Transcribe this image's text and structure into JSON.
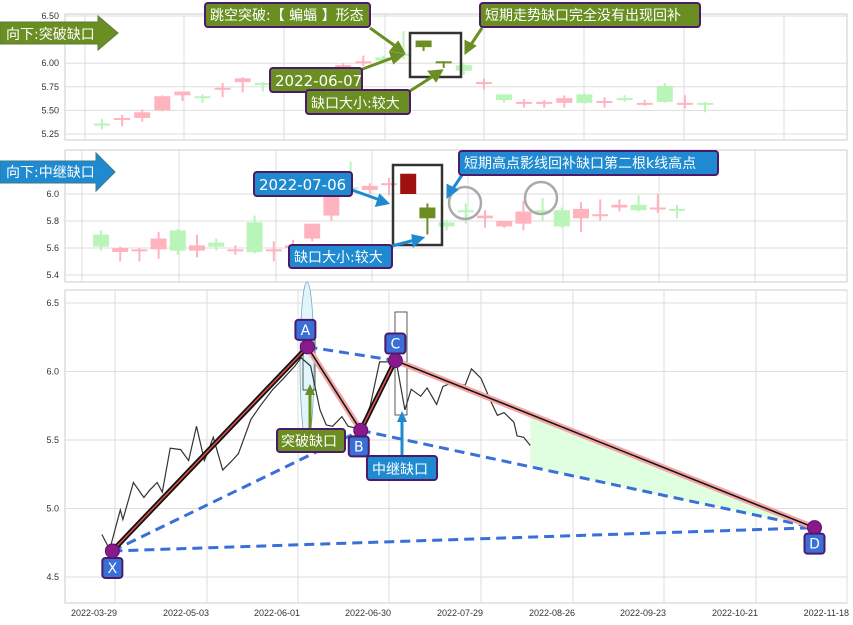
{
  "colors": {
    "up": "#ffb3bf",
    "down": "#b9f5b9",
    "highlight_green": "#6b8e23",
    "highlight_red": "#a01010",
    "olive_label": "#6b8e23",
    "blue_label": "#1f8ad0",
    "label_border": "#4b1a6b",
    "pattern_point": "#8a1a8a",
    "dashed": "#3a6fd8",
    "leg_red": "#e05050",
    "fill_zone": "#ddffdd"
  },
  "chart_data": [
    {
      "type": "candlestick",
      "panel": "breakaway-gap",
      "tag_label": "向下:突破缺口",
      "ylim": [
        5.15,
        6.5
      ],
      "yticks": [
        "6.50",
        "6.00",
        "5.75",
        "5.50",
        "5.25"
      ],
      "ytick_values": [
        6.5,
        6.0,
        5.75,
        5.5,
        5.25
      ],
      "grid": true,
      "annotations": {
        "pattern": "跳空突破:【 蝙蝠 】形态",
        "date": "2022-06-07",
        "gap_size": "缺口大小:较大",
        "note": "短期走势缺口完全没有出现回补"
      },
      "candles": [
        [
          5.36,
          5.41,
          5.3,
          5.35
        ],
        [
          5.41,
          5.45,
          5.33,
          5.42
        ],
        [
          5.42,
          5.51,
          5.38,
          5.48
        ],
        [
          5.5,
          5.66,
          5.49,
          5.65
        ],
        [
          5.66,
          5.7,
          5.6,
          5.7
        ],
        [
          5.65,
          5.67,
          5.58,
          5.64
        ],
        [
          5.72,
          5.79,
          5.64,
          5.74
        ],
        [
          5.8,
          5.85,
          5.69,
          5.84
        ],
        [
          5.79,
          5.8,
          5.7,
          5.78
        ],
        [
          5.84,
          5.88,
          5.78,
          5.85
        ],
        [
          5.88,
          5.93,
          5.84,
          5.9
        ],
        [
          5.92,
          5.96,
          5.88,
          5.94
        ],
        [
          5.96,
          6.0,
          5.93,
          5.98
        ],
        [
          6.0,
          6.08,
          5.97,
          6.02
        ],
        [
          6.06,
          6.08,
          6.02,
          6.03
        ],
        [
          6.1,
          6.34,
          6.04,
          6.08
        ],
        [
          6.24,
          6.24,
          6.13,
          6.17
        ],
        [
          6.02,
          6.02,
          5.95,
          6.0
        ],
        [
          5.98,
          6.0,
          5.88,
          5.92
        ],
        [
          5.78,
          5.84,
          5.72,
          5.8
        ],
        [
          5.67,
          5.67,
          5.58,
          5.61
        ],
        [
          5.58,
          5.62,
          5.53,
          5.59
        ],
        [
          5.58,
          5.61,
          5.53,
          5.59
        ],
        [
          5.58,
          5.66,
          5.53,
          5.63
        ],
        [
          5.67,
          5.68,
          5.57,
          5.58
        ],
        [
          5.58,
          5.64,
          5.53,
          5.6
        ],
        [
          5.63,
          5.66,
          5.59,
          5.62
        ],
        [
          5.57,
          5.61,
          5.55,
          5.58
        ],
        [
          5.76,
          5.79,
          5.58,
          5.59
        ],
        [
          5.57,
          5.66,
          5.52,
          5.58
        ],
        [
          5.58,
          5.59,
          5.48,
          5.57
        ]
      ],
      "highlighted": [
        16,
        17
      ]
    },
    {
      "type": "candlestick",
      "panel": "runaway-gap",
      "tag_label": "向下:中继缺口",
      "ylim": [
        5.38,
        6.3
      ],
      "yticks": [
        "6.0",
        "5.8",
        "5.6",
        "5.4"
      ],
      "ytick_values": [
        6.0,
        5.8,
        5.6,
        5.4
      ],
      "grid": true,
      "annotations": {
        "date": "2022-07-06",
        "gap_size": "缺口大小:较大",
        "note": "短期高点影线回补缺口第二根k线高点"
      },
      "candles": [
        [
          5.7,
          5.73,
          5.58,
          5.61
        ],
        [
          5.57,
          5.61,
          5.5,
          5.6
        ],
        [
          5.58,
          5.6,
          5.5,
          5.59
        ],
        [
          5.59,
          5.72,
          5.52,
          5.67
        ],
        [
          5.73,
          5.74,
          5.55,
          5.58
        ],
        [
          5.58,
          5.7,
          5.53,
          5.62
        ],
        [
          5.64,
          5.67,
          5.58,
          5.61
        ],
        [
          5.58,
          5.62,
          5.55,
          5.59
        ],
        [
          5.79,
          5.84,
          5.56,
          5.57
        ],
        [
          5.58,
          5.65,
          5.5,
          5.59
        ],
        [
          5.6,
          5.66,
          5.55,
          5.62
        ],
        [
          5.67,
          5.78,
          5.65,
          5.78
        ],
        [
          5.84,
          6.05,
          5.8,
          6.0
        ],
        [
          6.05,
          6.24,
          6.02,
          6.04
        ],
        [
          6.03,
          6.08,
          6.0,
          6.06
        ],
        [
          6.07,
          6.12,
          5.99,
          6.08
        ],
        [
          6.0,
          6.15,
          6.0,
          6.15
        ],
        [
          5.9,
          5.93,
          5.7,
          5.82
        ],
        [
          5.79,
          5.81,
          5.73,
          5.76
        ],
        [
          5.88,
          5.93,
          5.78,
          5.87
        ],
        [
          5.82,
          5.88,
          5.75,
          5.84
        ],
        [
          5.76,
          5.8,
          5.75,
          5.8
        ],
        [
          5.78,
          5.95,
          5.73,
          5.87
        ],
        [
          5.88,
          5.97,
          5.8,
          5.87
        ],
        [
          5.88,
          5.9,
          5.75,
          5.76
        ],
        [
          5.82,
          5.94,
          5.72,
          5.89
        ],
        [
          5.84,
          5.96,
          5.8,
          5.85
        ],
        [
          5.9,
          5.96,
          5.87,
          5.92
        ],
        [
          5.92,
          5.99,
          5.87,
          5.88
        ],
        [
          5.89,
          6.0,
          5.86,
          5.9
        ],
        [
          5.89,
          5.92,
          5.82,
          5.88
        ]
      ],
      "highlighted": [
        16,
        17
      ],
      "circled": [
        19,
        23
      ]
    },
    {
      "type": "line",
      "panel": "xabcd-pattern",
      "ylim": [
        4.35,
        6.65
      ],
      "yticks": [
        "6.5",
        "6.0",
        "5.5",
        "5.0",
        "4.5"
      ],
      "ytick_values": [
        6.5,
        6.0,
        5.5,
        5.0,
        4.5
      ],
      "xticks": [
        "2022-03-29",
        "2022-05-03",
        "2022-06-01",
        "2022-06-30",
        "2022-07-29",
        "2022-08-26",
        "2022-09-23",
        "2022-10-21",
        "2022-11-18"
      ],
      "grid": true,
      "price": [
        [
          "2022-03-24",
          4.81
        ],
        [
          "2022-03-27",
          4.7
        ],
        [
          "2022-03-31",
          4.99
        ],
        [
          "2022-04-01",
          4.92
        ],
        [
          "2022-04-05",
          5.19
        ],
        [
          "2022-04-09",
          5.08
        ],
        [
          "2022-04-11",
          5.13
        ],
        [
          "2022-04-14",
          5.19
        ],
        [
          "2022-04-16",
          5.12
        ],
        [
          "2022-04-19",
          5.44
        ],
        [
          "2022-04-23",
          5.43
        ],
        [
          "2022-04-26",
          5.35
        ],
        [
          "2022-04-29",
          5.6
        ],
        [
          "2022-05-02",
          5.35
        ],
        [
          "2022-05-05",
          5.52
        ],
        [
          "2022-05-08",
          5.28
        ],
        [
          "2022-05-11",
          5.35
        ],
        [
          "2022-05-13",
          5.4
        ],
        [
          "2022-05-17",
          5.65
        ],
        [
          "2022-05-20",
          5.75
        ],
        [
          "2022-05-24",
          5.87
        ],
        [
          "2022-05-27",
          5.94
        ],
        [
          "2022-05-31",
          6.04
        ],
        [
          "2022-06-02",
          6.1
        ],
        [
          "2022-06-05",
          6.04
        ],
        [
          "2022-06-08",
          5.72
        ],
        [
          "2022-06-10",
          5.61
        ],
        [
          "2022-06-12",
          5.6
        ],
        [
          "2022-06-15",
          5.67
        ],
        [
          "2022-06-17",
          5.6
        ],
        [
          "2022-06-21",
          5.58
        ],
        [
          "2022-06-24",
          5.75
        ],
        [
          "2022-06-27",
          6.07
        ],
        [
          "2022-06-30",
          6.07
        ],
        [
          "2022-07-02",
          6.11
        ],
        [
          "2022-07-05",
          5.72
        ],
        [
          "2022-07-07",
          5.87
        ],
        [
          "2022-07-10",
          5.82
        ],
        [
          "2022-07-12",
          5.88
        ],
        [
          "2022-07-15",
          5.76
        ],
        [
          "2022-07-17",
          5.89
        ],
        [
          "2022-07-20",
          5.92
        ],
        [
          "2022-07-24",
          5.9
        ],
        [
          "2022-07-26",
          6.02
        ],
        [
          "2022-07-29",
          5.95
        ],
        [
          "2022-08-01",
          5.78
        ],
        [
          "2022-08-03",
          5.68
        ],
        [
          "2022-08-05",
          5.7
        ],
        [
          "2022-08-08",
          5.63
        ],
        [
          "2022-08-09",
          5.53
        ],
        [
          "2022-08-11",
          5.52
        ],
        [
          "2022-08-13",
          5.46
        ]
      ],
      "points": [
        {
          "label": "X",
          "date": "2022-03-28",
          "value": 4.69
        },
        {
          "label": "A",
          "date": "2022-06-04",
          "value": 6.18
        },
        {
          "label": "B",
          "date": "2022-06-21",
          "value": 5.57
        },
        {
          "label": "C",
          "date": "2022-07-02",
          "value": 6.08
        },
        {
          "label": "D",
          "date": "2022-11-08",
          "value": 4.86
        }
      ],
      "gap_labels": {
        "breakaway": "突破缺口",
        "runaway": "中继缺口"
      },
      "target_zone_start": "2022-08-13"
    }
  ]
}
